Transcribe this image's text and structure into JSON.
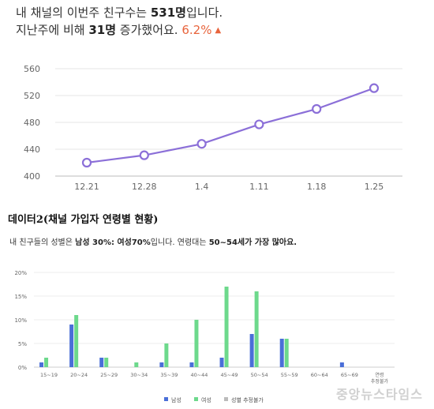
{
  "header": {
    "line1_prefix": "내 채널의 이번주 친구수는 ",
    "line1_value": "531명",
    "line1_suffix": "입니다.",
    "line2_prefix": "지난주에 비해 ",
    "line2_value": "31명",
    "line2_suffix": " 증가했어요. ",
    "change_pct": "6.2%",
    "change_icon": "triangle-up-icon"
  },
  "section_title": "데이터2(채널 가입자 연령별 현황)",
  "summary": {
    "prefix": "내 친구들의 성별은 ",
    "gender": "남성 30%: 여성70%",
    "middle": "입니다. 연령대는 ",
    "age": "50~54세가 가장 많아요."
  },
  "watermark": "중앙뉴스타임스",
  "colors": {
    "line": "#8b6fd8",
    "male": "#4a6fd8",
    "female": "#6dd98c",
    "unknown": "#bbbbbb",
    "accent": "#e8643c"
  },
  "chart_data": [
    {
      "type": "line",
      "x": [
        "12.21",
        "12.28",
        "1.4",
        "1.11",
        "1.18",
        "1.25"
      ],
      "series": [
        {
          "values": [
            420,
            431,
            448,
            477,
            500,
            531
          ]
        }
      ],
      "yticks": [
        "560",
        "520",
        "480",
        "440",
        "400"
      ],
      "ylim": [
        400,
        560
      ],
      "grid": true
    },
    {
      "type": "bar",
      "categories": [
        "15~19",
        "20~24",
        "25~29",
        "30~34",
        "35~39",
        "40~44",
        "45~49",
        "50~54",
        "55~59",
        "60~64",
        "65~69",
        "연령 추정불가"
      ],
      "series": [
        {
          "name": "남성",
          "values": [
            1,
            9,
            2,
            0,
            1,
            1,
            2,
            7,
            6,
            0,
            1,
            0
          ]
        },
        {
          "name": "여성",
          "values": [
            2,
            11,
            2,
            1,
            5,
            10,
            17,
            16,
            6,
            0,
            0,
            0
          ]
        },
        {
          "name": "성별 추정불가",
          "values": [
            0,
            0,
            0,
            0,
            0,
            0,
            0,
            0,
            0,
            0,
            0,
            0
          ]
        }
      ],
      "yticks": [
        "20%",
        "15%",
        "10%",
        "5%",
        "0%"
      ],
      "ylim": [
        0,
        20
      ],
      "legend": "bottom"
    }
  ]
}
